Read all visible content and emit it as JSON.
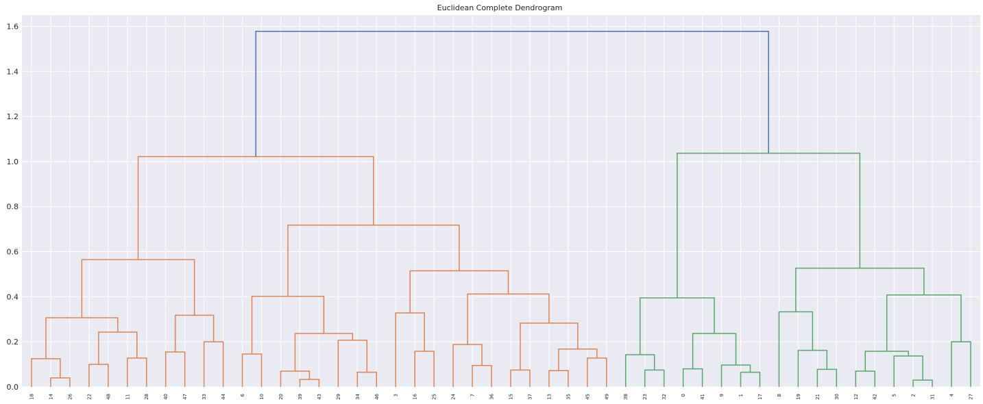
{
  "chart_data": {
    "type": "dendrogram",
    "title": "Euclidean Complete Dendrogram",
    "xlabel": "",
    "ylabel": "",
    "ylim": [
      0,
      1.65
    ],
    "yticks": [
      "0.0",
      "0.2",
      "0.4",
      "0.6",
      "0.8",
      "1.0",
      "1.2",
      "1.4",
      "1.6"
    ],
    "grid": true,
    "leaves": [
      "18",
      "14",
      "26",
      "22",
      "48",
      "11",
      "28",
      "40",
      "47",
      "33",
      "44",
      "6",
      "10",
      "20",
      "39",
      "43",
      "29",
      "34",
      "46",
      "3",
      "16",
      "25",
      "24",
      "7",
      "36",
      "15",
      "37",
      "13",
      "35",
      "45",
      "49",
      "38",
      "23",
      "32",
      "0",
      "41",
      "9",
      "1",
      "17",
      "8",
      "19",
      "21",
      "30",
      "12",
      "42",
      "5",
      "2",
      "31",
      "4",
      "27"
    ],
    "colors": {
      "orange": "#dd8452",
      "green": "#55a868",
      "blue": "#4c72b0",
      "background": "#eaeaf2",
      "grid": "#ffffff"
    },
    "merges": [
      {
        "l": 1,
        "r": 2,
        "h": 0.04,
        "c": "orange"
      },
      {
        "l": 0,
        "r": 50,
        "h": 0.125,
        "c": "orange"
      },
      {
        "l": 3,
        "r": 4,
        "h": 0.1,
        "c": "orange"
      },
      {
        "l": 5,
        "r": 6,
        "h": 0.128,
        "c": "orange"
      },
      {
        "l": 52,
        "r": 53,
        "h": 0.243,
        "c": "orange"
      },
      {
        "l": 51,
        "r": 54,
        "h": 0.307,
        "c": "orange"
      },
      {
        "l": 7,
        "r": 8,
        "h": 0.155,
        "c": "orange"
      },
      {
        "l": 9,
        "r": 10,
        "h": 0.2,
        "c": "orange"
      },
      {
        "l": 56,
        "r": 57,
        "h": 0.318,
        "c": "orange"
      },
      {
        "l": 55,
        "r": 58,
        "h": 0.565,
        "c": "orange"
      },
      {
        "l": 11,
        "r": 12,
        "h": 0.146,
        "c": "orange"
      },
      {
        "l": 14,
        "r": 15,
        "h": 0.033,
        "c": "orange"
      },
      {
        "l": 13,
        "r": 61,
        "h": 0.07,
        "c": "orange"
      },
      {
        "l": 17,
        "r": 18,
        "h": 0.065,
        "c": "orange"
      },
      {
        "l": 16,
        "r": 63,
        "h": 0.207,
        "c": "orange"
      },
      {
        "l": 62,
        "r": 64,
        "h": 0.237,
        "c": "orange"
      },
      {
        "l": 60,
        "r": 65,
        "h": 0.402,
        "c": "orange"
      },
      {
        "l": 20,
        "r": 21,
        "h": 0.158,
        "c": "orange"
      },
      {
        "l": 19,
        "r": 67,
        "h": 0.328,
        "c": "orange"
      },
      {
        "l": 23,
        "r": 24,
        "h": 0.095,
        "c": "orange"
      },
      {
        "l": 22,
        "r": 69,
        "h": 0.188,
        "c": "orange"
      },
      {
        "l": 25,
        "r": 26,
        "h": 0.075,
        "c": "orange"
      },
      {
        "l": 27,
        "r": 28,
        "h": 0.072,
        "c": "orange"
      },
      {
        "l": 29,
        "r": 30,
        "h": 0.128,
        "c": "orange"
      },
      {
        "l": 72,
        "r": 73,
        "h": 0.168,
        "c": "orange"
      },
      {
        "l": 71,
        "r": 74,
        "h": 0.283,
        "c": "orange"
      },
      {
        "l": 70,
        "r": 75,
        "h": 0.412,
        "c": "orange"
      },
      {
        "l": 68,
        "r": 76,
        "h": 0.515,
        "c": "orange"
      },
      {
        "l": 66,
        "r": 77,
        "h": 0.718,
        "c": "orange"
      },
      {
        "l": 59,
        "r": 78,
        "h": 1.022,
        "c": "orange"
      },
      {
        "l": 32,
        "r": 33,
        "h": 0.075,
        "c": "green"
      },
      {
        "l": 31,
        "r": 80,
        "h": 0.143,
        "c": "green"
      },
      {
        "l": 34,
        "r": 35,
        "h": 0.08,
        "c": "green"
      },
      {
        "l": 37,
        "r": 38,
        "h": 0.065,
        "c": "green"
      },
      {
        "l": 36,
        "r": 83,
        "h": 0.097,
        "c": "green"
      },
      {
        "l": 82,
        "r": 84,
        "h": 0.237,
        "c": "green"
      },
      {
        "l": 81,
        "r": 85,
        "h": 0.395,
        "c": "green"
      },
      {
        "l": 41,
        "r": 42,
        "h": 0.078,
        "c": "green"
      },
      {
        "l": 40,
        "r": 87,
        "h": 0.162,
        "c": "green"
      },
      {
        "l": 39,
        "r": 88,
        "h": 0.333,
        "c": "green"
      },
      {
        "l": 43,
        "r": 44,
        "h": 0.07,
        "c": "green"
      },
      {
        "l": 46,
        "r": 47,
        "h": 0.03,
        "c": "green"
      },
      {
        "l": 45,
        "r": 91,
        "h": 0.137,
        "c": "green"
      },
      {
        "l": 90,
        "r": 92,
        "h": 0.158,
        "c": "green"
      },
      {
        "l": 48,
        "r": 49,
        "h": 0.2,
        "c": "green"
      },
      {
        "l": 93,
        "r": 94,
        "h": 0.408,
        "c": "green"
      },
      {
        "l": 89,
        "r": 95,
        "h": 0.527,
        "c": "green"
      },
      {
        "l": 86,
        "r": 96,
        "h": 1.037,
        "c": "green"
      },
      {
        "l": 79,
        "r": 97,
        "h": 1.578,
        "c": "blue"
      }
    ]
  }
}
